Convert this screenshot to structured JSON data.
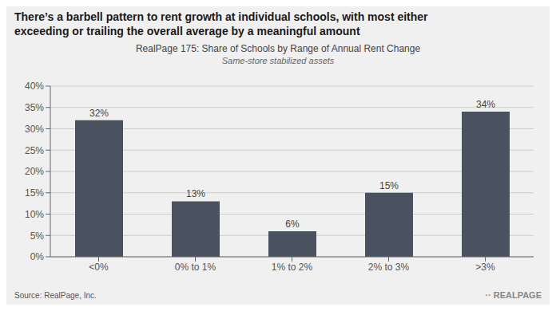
{
  "chart_data": {
    "type": "bar",
    "title": "There’s a barbell pattern to rent growth at individual schools, with most either\nexceeding or trailing the overall average by a meaningful amount",
    "subtitle": "RealPage 175: Share of Schools by Range of Annual Rent Change",
    "annotations": [
      "Same-store stabilized assets",
      "Source: RealPage, Inc.",
      "·· REALPAGE"
    ],
    "categories": [
      "<0%",
      "0% to 1%",
      "1% to 2%",
      "2% to 3%",
      ">3%"
    ],
    "values": [
      32,
      13,
      6,
      15,
      34
    ],
    "value_labels": [
      "32%",
      "13%",
      "6%",
      "15%",
      "34%"
    ],
    "data_labels": true,
    "color": "#4a5260",
    "ylim": [
      0,
      40
    ],
    "yticks": [
      {
        "value": 0,
        "label": "0%"
      },
      {
        "value": 5,
        "label": "5%"
      },
      {
        "value": 10,
        "label": "10%"
      },
      {
        "value": 15,
        "label": "15%"
      },
      {
        "value": 20,
        "label": "20%"
      },
      {
        "value": 25,
        "label": "25%"
      },
      {
        "value": 30,
        "label": "30%"
      },
      {
        "value": 35,
        "label": "35%"
      },
      {
        "value": 40,
        "label": "40%"
      }
    ],
    "grid": true
  }
}
